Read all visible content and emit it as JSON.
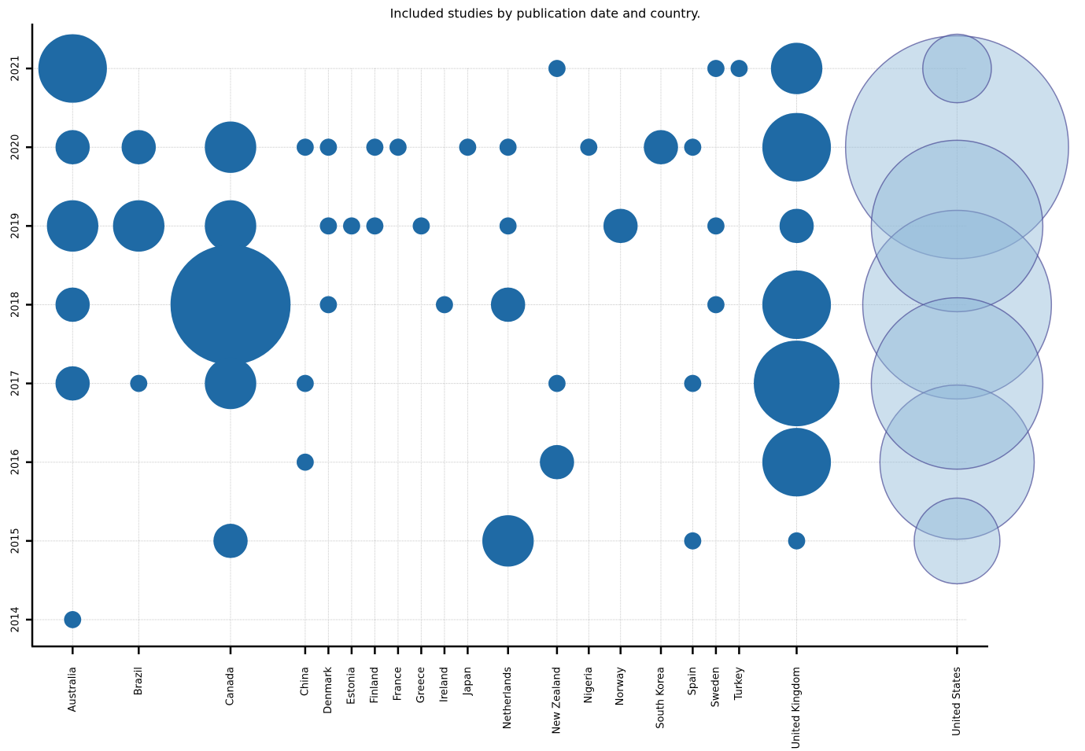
{
  "chart_data": {
    "type": "bubble",
    "title": "Included studies by publication date and country.",
    "categories": [
      "Australia",
      "Brazil",
      "Canada",
      "China",
      "Denmark",
      "Estonia",
      "Finland",
      "France",
      "Greece",
      "Ireland",
      "Japan",
      "Netherlands",
      "New Zealand",
      "Nigeria",
      "Norway",
      "South Korea",
      "Spain",
      "Sweden",
      "Turkey",
      "United Kingdom",
      "United States"
    ],
    "ylim": [
      2013.66,
      2021.57
    ],
    "yticks": [
      2014,
      2015,
      2016,
      2017,
      2018,
      2019,
      2020,
      2021
    ],
    "grid": true,
    "color": "#1f6aa5",
    "highlight": {
      "category": "United States",
      "color": "#8fb8d6",
      "stroke": "#4a4a96"
    },
    "points": [
      {
        "x": "Australia",
        "y": 2021,
        "size": 4
      },
      {
        "x": "Australia",
        "y": 2020,
        "size": 2
      },
      {
        "x": "Australia",
        "y": 2019,
        "size": 3
      },
      {
        "x": "Australia",
        "y": 2018,
        "size": 2
      },
      {
        "x": "Australia",
        "y": 2017,
        "size": 2
      },
      {
        "x": "Australia",
        "y": 2014,
        "size": 1
      },
      {
        "x": "Brazil",
        "y": 2020,
        "size": 2
      },
      {
        "x": "Brazil",
        "y": 2019,
        "size": 3
      },
      {
        "x": "Brazil",
        "y": 2017,
        "size": 1
      },
      {
        "x": "Canada",
        "y": 2020,
        "size": 3
      },
      {
        "x": "Canada",
        "y": 2019,
        "size": 3
      },
      {
        "x": "Canada",
        "y": 2018,
        "size": 7
      },
      {
        "x": "Canada",
        "y": 2017,
        "size": 3
      },
      {
        "x": "Canada",
        "y": 2015,
        "size": 2
      },
      {
        "x": "China",
        "y": 2020,
        "size": 1
      },
      {
        "x": "China",
        "y": 2017,
        "size": 1
      },
      {
        "x": "China",
        "y": 2016,
        "size": 1
      },
      {
        "x": "Denmark",
        "y": 2020,
        "size": 1
      },
      {
        "x": "Denmark",
        "y": 2019,
        "size": 1
      },
      {
        "x": "Denmark",
        "y": 2018,
        "size": 1
      },
      {
        "x": "Estonia",
        "y": 2019,
        "size": 1
      },
      {
        "x": "Finland",
        "y": 2020,
        "size": 1
      },
      {
        "x": "Finland",
        "y": 2019,
        "size": 1
      },
      {
        "x": "France",
        "y": 2020,
        "size": 1
      },
      {
        "x": "Greece",
        "y": 2019,
        "size": 1
      },
      {
        "x": "Ireland",
        "y": 2018,
        "size": 1
      },
      {
        "x": "Japan",
        "y": 2020,
        "size": 1
      },
      {
        "x": "Netherlands",
        "y": 2020,
        "size": 1
      },
      {
        "x": "Netherlands",
        "y": 2019,
        "size": 1
      },
      {
        "x": "Netherlands",
        "y": 2018,
        "size": 2
      },
      {
        "x": "Netherlands",
        "y": 2015,
        "size": 3
      },
      {
        "x": "New Zealand",
        "y": 2021,
        "size": 1
      },
      {
        "x": "New Zealand",
        "y": 2017,
        "size": 1
      },
      {
        "x": "New Zealand",
        "y": 2016,
        "size": 2
      },
      {
        "x": "Nigeria",
        "y": 2020,
        "size": 1
      },
      {
        "x": "Norway",
        "y": 2019,
        "size": 2
      },
      {
        "x": "South Korea",
        "y": 2020,
        "size": 2
      },
      {
        "x": "Spain",
        "y": 2020,
        "size": 1
      },
      {
        "x": "Spain",
        "y": 2017,
        "size": 1
      },
      {
        "x": "Spain",
        "y": 2015,
        "size": 1
      },
      {
        "x": "Sweden",
        "y": 2021,
        "size": 1
      },
      {
        "x": "Sweden",
        "y": 2019,
        "size": 1
      },
      {
        "x": "Sweden",
        "y": 2018,
        "size": 1
      },
      {
        "x": "Turkey",
        "y": 2021,
        "size": 1
      },
      {
        "x": "United Kingdom",
        "y": 2021,
        "size": 3
      },
      {
        "x": "United Kingdom",
        "y": 2020,
        "size": 4
      },
      {
        "x": "United Kingdom",
        "y": 2019,
        "size": 2
      },
      {
        "x": "United Kingdom",
        "y": 2018,
        "size": 4
      },
      {
        "x": "United Kingdom",
        "y": 2017,
        "size": 5
      },
      {
        "x": "United Kingdom",
        "y": 2016,
        "size": 4
      },
      {
        "x": "United Kingdom",
        "y": 2015,
        "size": 1
      },
      {
        "x": "United States",
        "y": 2020,
        "size": 13
      },
      {
        "x": "United States",
        "y": 2018,
        "size": 11
      },
      {
        "x": "United States",
        "y": 2016,
        "size": 9
      },
      {
        "x": "United States",
        "y": 2019,
        "size": 10
      },
      {
        "x": "United States",
        "y": 2017,
        "size": 10
      },
      {
        "x": "United States",
        "y": 2021,
        "size": 4
      },
      {
        "x": "United States",
        "y": 2015,
        "size": 5
      }
    ]
  }
}
